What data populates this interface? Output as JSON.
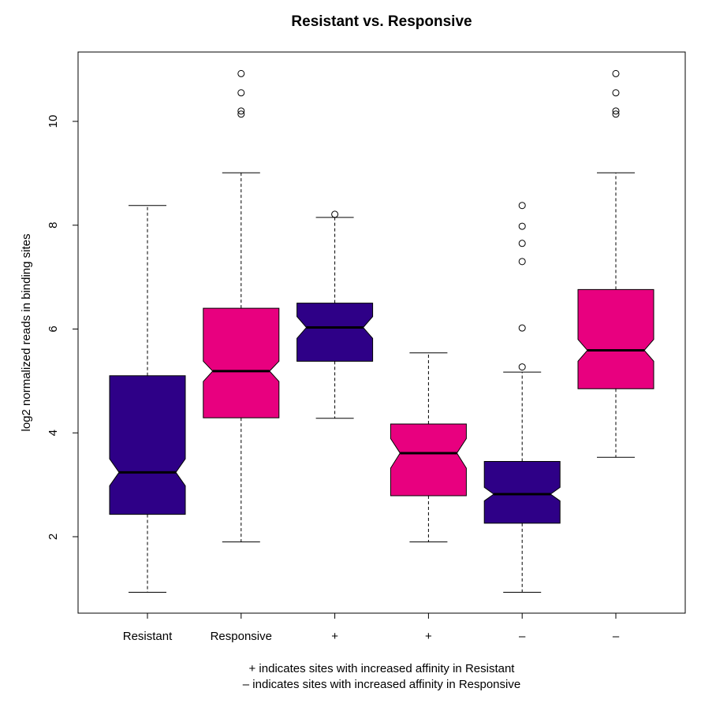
{
  "chart_data": {
    "type": "boxplot",
    "title": "Resistant vs. Responsive",
    "xlabel": "",
    "ylabel": "log2 normalized reads in binding sites",
    "ylim": [
      0.5,
      11.6
    ],
    "yticks": [
      2,
      4,
      6,
      8,
      10
    ],
    "notched": true,
    "grid": false,
    "categories": [
      "Resistant",
      "Responsive",
      "+",
      "+",
      "–",
      "–"
    ],
    "boxes": [
      {
        "label": "Resistant",
        "color": "#2E0087",
        "whisker_low": 0.93,
        "q1": 2.43,
        "median": 3.24,
        "q3": 5.1,
        "whisker_high": 8.38,
        "notch_low": 2.98,
        "notch_high": 3.5,
        "outliers": []
      },
      {
        "label": "Responsive",
        "color": "#E8007F",
        "whisker_low": 1.9,
        "q1": 4.29,
        "median": 5.19,
        "q3": 6.4,
        "whisker_high": 9.01,
        "notch_low": 4.99,
        "notch_high": 5.38,
        "outliers": [
          10.14,
          10.2,
          10.55,
          10.92
        ]
      },
      {
        "label": "+",
        "color": "#2E0087",
        "whisker_low": 4.28,
        "q1": 5.38,
        "median": 6.03,
        "q3": 6.5,
        "whisker_high": 8.15,
        "notch_low": 5.82,
        "notch_high": 6.24,
        "outliers": [
          8.21
        ]
      },
      {
        "label": "+",
        "color": "#E8007F",
        "whisker_low": 1.9,
        "q1": 2.79,
        "median": 3.61,
        "q3": 4.17,
        "whisker_high": 5.54,
        "notch_low": 3.32,
        "notch_high": 3.89,
        "outliers": []
      },
      {
        "label": "–",
        "color": "#2E0087",
        "whisker_low": 0.93,
        "q1": 2.26,
        "median": 2.82,
        "q3": 3.45,
        "whisker_high": 5.17,
        "notch_low": 2.69,
        "notch_high": 2.95,
        "outliers": [
          5.27,
          6.02,
          7.3,
          7.65,
          7.98,
          8.38
        ]
      },
      {
        "label": "–",
        "color": "#E8007F",
        "whisker_low": 3.53,
        "q1": 4.85,
        "median": 5.59,
        "q3": 6.76,
        "whisker_high": 9.01,
        "notch_low": 5.38,
        "notch_high": 5.8,
        "outliers": [
          10.14,
          10.2,
          10.55,
          10.92
        ]
      }
    ],
    "notes": [
      "+ indicates sites with increased affinity in Resistant",
      "– indicates sites with increased affinity in Responsive"
    ]
  }
}
